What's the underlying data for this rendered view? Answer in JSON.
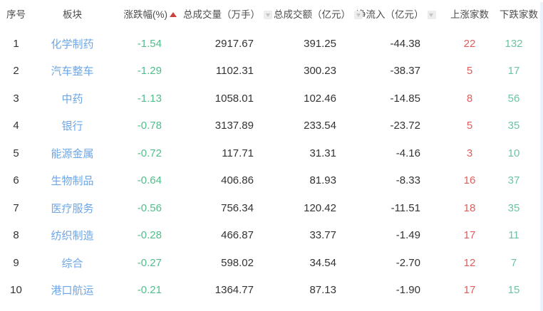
{
  "header": {
    "seq": "序号",
    "sector": "板块",
    "change_pct": "涨跌幅(%)",
    "volume": "总成交量（万手）",
    "turnover": "总成交额（亿元）",
    "net_inflow": "净流入（亿元）",
    "up_count": "上涨家数",
    "down_count": "下跌家数"
  },
  "sort": {
    "active_column": "涨跌幅(%)",
    "direction": "ascending"
  },
  "rows": [
    {
      "seq": "1",
      "sector": "化学制药",
      "change": "-1.54",
      "volume": "2917.67",
      "turnover": "391.25",
      "inflow": "-44.38",
      "up": "22",
      "down": "132"
    },
    {
      "seq": "2",
      "sector": "汽车整车",
      "change": "-1.29",
      "volume": "1102.31",
      "turnover": "300.23",
      "inflow": "-38.37",
      "up": "5",
      "down": "17"
    },
    {
      "seq": "3",
      "sector": "中药",
      "change": "-1.13",
      "volume": "1058.01",
      "turnover": "102.46",
      "inflow": "-14.85",
      "up": "8",
      "down": "56"
    },
    {
      "seq": "4",
      "sector": "银行",
      "change": "-0.78",
      "volume": "3137.89",
      "turnover": "233.54",
      "inflow": "-23.72",
      "up": "5",
      "down": "35"
    },
    {
      "seq": "5",
      "sector": "能源金属",
      "change": "-0.72",
      "volume": "117.71",
      "turnover": "31.31",
      "inflow": "-4.16",
      "up": "3",
      "down": "10"
    },
    {
      "seq": "6",
      "sector": "生物制品",
      "change": "-0.64",
      "volume": "406.86",
      "turnover": "81.93",
      "inflow": "-8.33",
      "up": "16",
      "down": "37"
    },
    {
      "seq": "7",
      "sector": "医疗服务",
      "change": "-0.56",
      "volume": "756.34",
      "turnover": "120.42",
      "inflow": "-11.51",
      "up": "18",
      "down": "35"
    },
    {
      "seq": "8",
      "sector": "纺织制造",
      "change": "-0.28",
      "volume": "466.87",
      "turnover": "33.77",
      "inflow": "-1.49",
      "up": "17",
      "down": "11"
    },
    {
      "seq": "9",
      "sector": "综合",
      "change": "-0.27",
      "volume": "598.02",
      "turnover": "34.54",
      "inflow": "-2.70",
      "up": "12",
      "down": "7"
    },
    {
      "seq": "10",
      "sector": "港口航运",
      "change": "-0.21",
      "volume": "1364.77",
      "turnover": "87.13",
      "inflow": "-1.90",
      "up": "17",
      "down": "15"
    }
  ],
  "colors": {
    "sector_link": "#6ca6e6",
    "negative_change": "#52bd8b",
    "up_count": "#e15d5d",
    "down_count": "#6cc5a0",
    "active_sort_arrow": "#c9433c",
    "body_text": "#333333",
    "header_text": "#4d4d4d"
  },
  "icons": {
    "sort_active": "sort-ascending-triangle-icon",
    "sort_inactive": "sort-down-triangle-icon"
  }
}
